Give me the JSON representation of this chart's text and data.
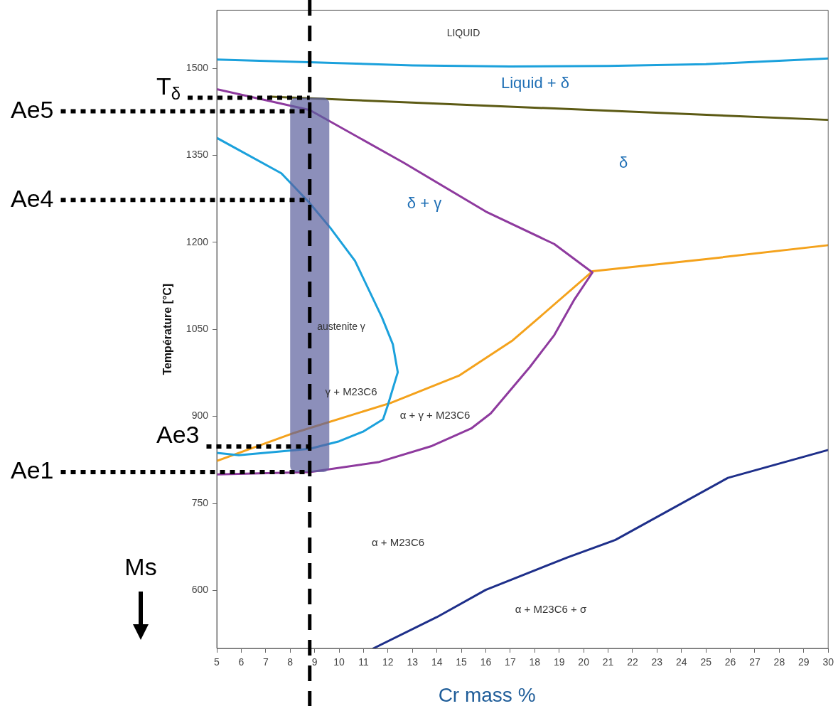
{
  "chart_data": {
    "type": "line",
    "xlabel": "Cr mass %",
    "ylabel": "Température [°C]",
    "xlim": [
      5,
      30
    ],
    "xticks": [
      5,
      6,
      7,
      8,
      9,
      10,
      11,
      12,
      13,
      14,
      15,
      16,
      17,
      18,
      19,
      20,
      21,
      22,
      23,
      24,
      25,
      26,
      27,
      28,
      29,
      30
    ],
    "ylim": [
      500,
      1600
    ],
    "yticks": [
      600,
      750,
      900,
      1050,
      1200,
      1350,
      1500
    ],
    "grid": false,
    "marker": "none",
    "series": [
      {
        "color": "#1ba1dc",
        "x": [
          5,
          9,
          13,
          17,
          21,
          25,
          30
        ],
        "values": [
          1515,
          1510,
          1505,
          1503,
          1504,
          1507,
          1517
        ]
      },
      {
        "color": "#5c5a14",
        "x": [
          7.2,
          30
        ],
        "values": [
          1451,
          1411
        ]
      },
      {
        "color": "#8e3a9e",
        "x": [
          5,
          8.8,
          12.65,
          16,
          18.8,
          20.36,
          19.6,
          18.8,
          17.8,
          16.2,
          15.4,
          13.8,
          11.6,
          8.8,
          5
        ],
        "values": [
          1464,
          1428,
          1337,
          1253,
          1197,
          1148,
          1100,
          1040,
          985,
          905,
          879,
          849,
          821,
          804,
          800
        ]
      },
      {
        "color": "#1ba1dc",
        "x": [
          5,
          7.64,
          8.77,
          9.64,
          10.65,
          11.75,
          12.2,
          12.4,
          12,
          11.8,
          11,
          10,
          8.8,
          5.9,
          5
        ],
        "values": [
          1380,
          1319,
          1269,
          1225,
          1168,
          1071,
          1024,
          976,
          920,
          895,
          874,
          857,
          844,
          833,
          837
        ]
      },
      {
        "color": "#f4a21c",
        "x": [
          5,
          8.2,
          12.1,
          14.9,
          17.1,
          18.2,
          20.36,
          25,
          30
        ],
        "values": [
          823,
          872,
          923,
          970,
          1031,
          1071,
          1150,
          1171,
          1195
        ]
      },
      {
        "color": "#1e2f8a",
        "x": [
          11.4,
          14,
          16,
          19.35,
          21.3,
          25.9,
          30
        ],
        "values": [
          500,
          554,
          601,
          657,
          687,
          794,
          842
        ]
      }
    ],
    "ref_lines": [
      {
        "axis": "x",
        "value": 8.8,
        "color": "#000000",
        "line_style": "dashed"
      },
      {
        "axis": "y",
        "value": 1449,
        "label": "T$_{δ}$",
        "color": "#000000",
        "line_style": "dotted"
      },
      {
        "axis": "y",
        "value": 1426,
        "label": "Ae5",
        "color": "#000000",
        "line_style": "dotted"
      },
      {
        "axis": "y",
        "value": 1273,
        "label": "Ae4",
        "color": "#000000",
        "line_style": "dotted"
      },
      {
        "axis": "y",
        "value": 848,
        "label": "Ae3",
        "color": "#000000",
        "line_style": "dotted"
      },
      {
        "axis": "y",
        "value": 804,
        "label": "Ae1",
        "color": "#000000",
        "line_style": "dotted"
      }
    ],
    "bands": [
      {
        "axis": "x",
        "from": 8,
        "to": 9.6,
        "color": "#5b5f9c"
      }
    ],
    "annotations": [
      "LIQUID",
      "Liquid + δ",
      "δ",
      "δ + γ",
      "austenite γ",
      "γ + M23C6",
      "α + γ + M23C6",
      "α + M23C6",
      "α + M23C6 + σ",
      "Ms"
    ]
  }
}
